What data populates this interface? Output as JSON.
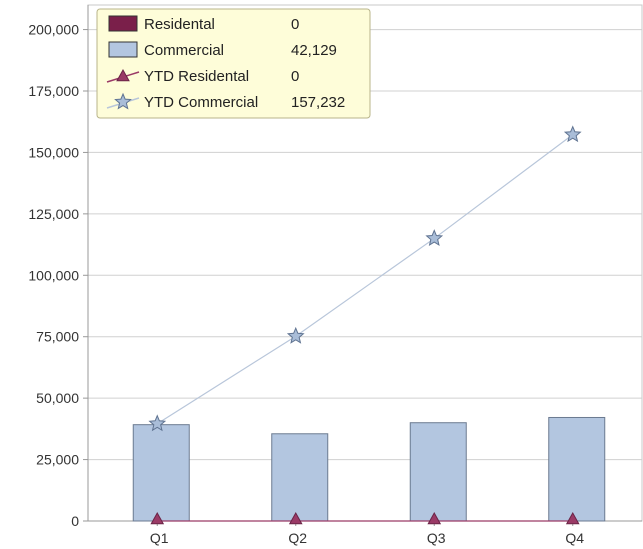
{
  "chart_data": {
    "type": "bar",
    "categories": [
      "Q1",
      "Q2",
      "Q3",
      "Q4"
    ],
    "series": [
      {
        "name": "Residental",
        "kind": "bar",
        "color": "#7a1f4a",
        "values": [
          0,
          0,
          0,
          0
        ]
      },
      {
        "name": "Commercial",
        "kind": "bar",
        "color": "#b3c6e0",
        "values": [
          39200,
          35500,
          40000,
          42129
        ]
      },
      {
        "name": "YTD Residental",
        "kind": "line",
        "marker": "triangle",
        "color": "#9a3a66",
        "values": [
          0,
          0,
          0,
          0
        ]
      },
      {
        "name": "YTD Commercial",
        "kind": "line",
        "marker": "star",
        "color": "#a9bdd8",
        "values": [
          39600,
          75200,
          115000,
          157232
        ]
      }
    ],
    "y_ticks": [
      "0",
      "25,000",
      "50,000",
      "75,000",
      "100,000",
      "125,000",
      "150,000",
      "175,000",
      "200,000"
    ],
    "ylim": [
      0,
      210000
    ],
    "grid": true,
    "legend_placement": "top-left",
    "tooltip": {
      "category": "Q4",
      "rows": [
        {
          "label": "Residental",
          "value": "0",
          "symbol": "bar",
          "color": "#7a1f4a"
        },
        {
          "label": "Commercial",
          "value": "42,129",
          "symbol": "bar",
          "color": "#b3c6e0"
        },
        {
          "label": "YTD Residental",
          "value": "0",
          "symbol": "triangle",
          "color": "#9a3a66"
        },
        {
          "label": "YTD Commercial",
          "value": "157,232",
          "symbol": "star",
          "color": "#a9bdd8"
        }
      ]
    }
  }
}
